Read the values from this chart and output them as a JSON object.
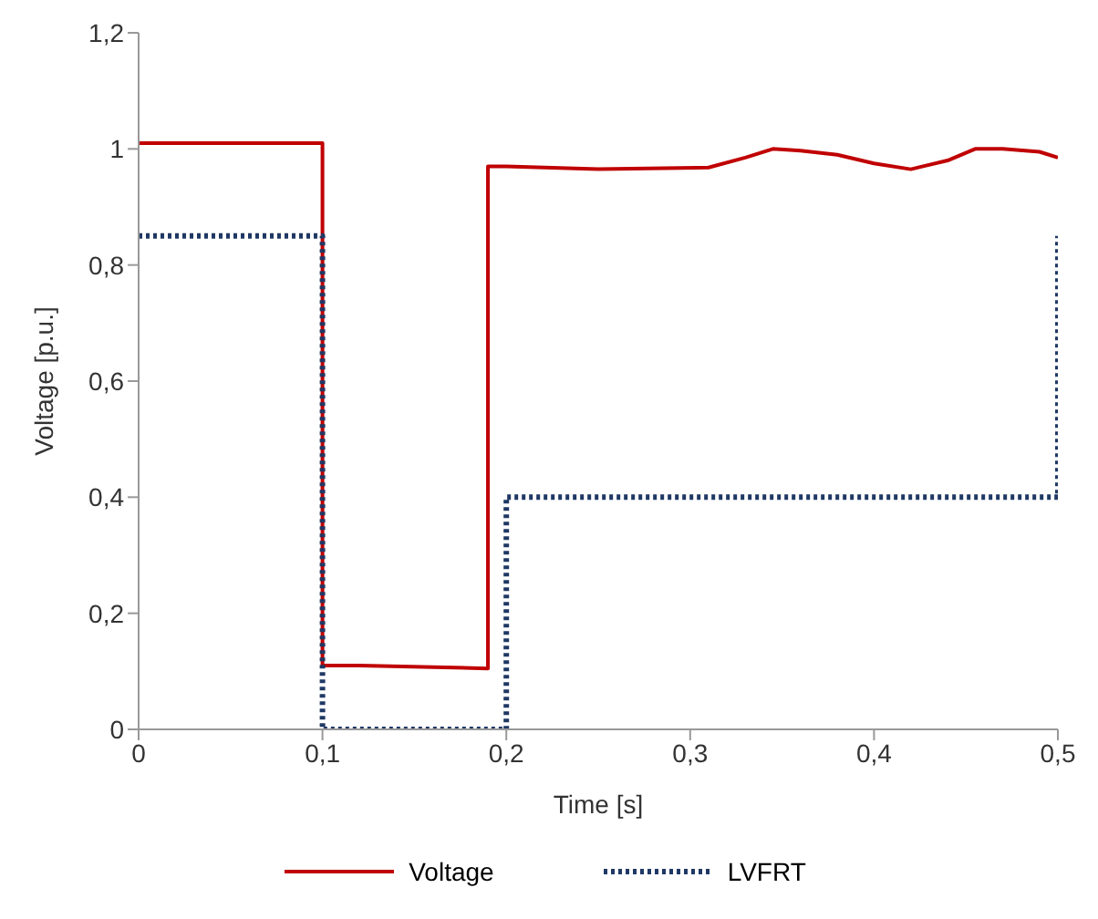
{
  "chart_data": {
    "type": "line",
    "xlabel": "Time [s]",
    "ylabel": "Voltage [p.u.]",
    "xlim": [
      0,
      0.5
    ],
    "ylim": [
      0,
      1.2
    ],
    "xticks": [
      0,
      {
        "value": 0.1,
        "label": "0,1"
      },
      {
        "value": 0.2,
        "label": "0,2"
      },
      {
        "value": 0.3,
        "label": "0,3"
      },
      {
        "value": 0.4,
        "label": "0,4"
      },
      {
        "value": 0.5,
        "label": "0,5"
      }
    ],
    "yticks": [
      0,
      {
        "value": 0.2,
        "label": "0,2"
      },
      {
        "value": 0.4,
        "label": "0,4"
      },
      {
        "value": 0.6,
        "label": "0,6"
      },
      {
        "value": 0.8,
        "label": "0,8"
      },
      1,
      {
        "value": 1.2,
        "label": "1,2"
      }
    ],
    "grid": false,
    "legend": "bottom",
    "marker": "none",
    "series": [
      {
        "name": "Voltage",
        "color": "#c00000",
        "line_style": "solid",
        "x": [
          0,
          0.1,
          0.1,
          0.12,
          0.19,
          0.19,
          0.2,
          0.25,
          0.31,
          0.33,
          0.345,
          0.36,
          0.38,
          0.4,
          0.42,
          0.44,
          0.455,
          0.47,
          0.49,
          0.5
        ],
        "values": [
          1.01,
          1.01,
          0.11,
          0.11,
          0.105,
          0.97,
          0.97,
          0.965,
          0.968,
          0.985,
          1.0,
          0.997,
          0.99,
          0.975,
          0.965,
          0.98,
          1.0,
          1.0,
          0.995,
          0.985
        ]
      },
      {
        "name": "LVFRT",
        "color": "#1f3864",
        "line_style": "dotted",
        "x": [
          0,
          0.1,
          0.1,
          0.2,
          0.2,
          0.5,
          0.5
        ],
        "values": [
          0.85,
          0.85,
          0,
          0,
          0.4,
          0.4,
          0.85
        ]
      }
    ]
  }
}
